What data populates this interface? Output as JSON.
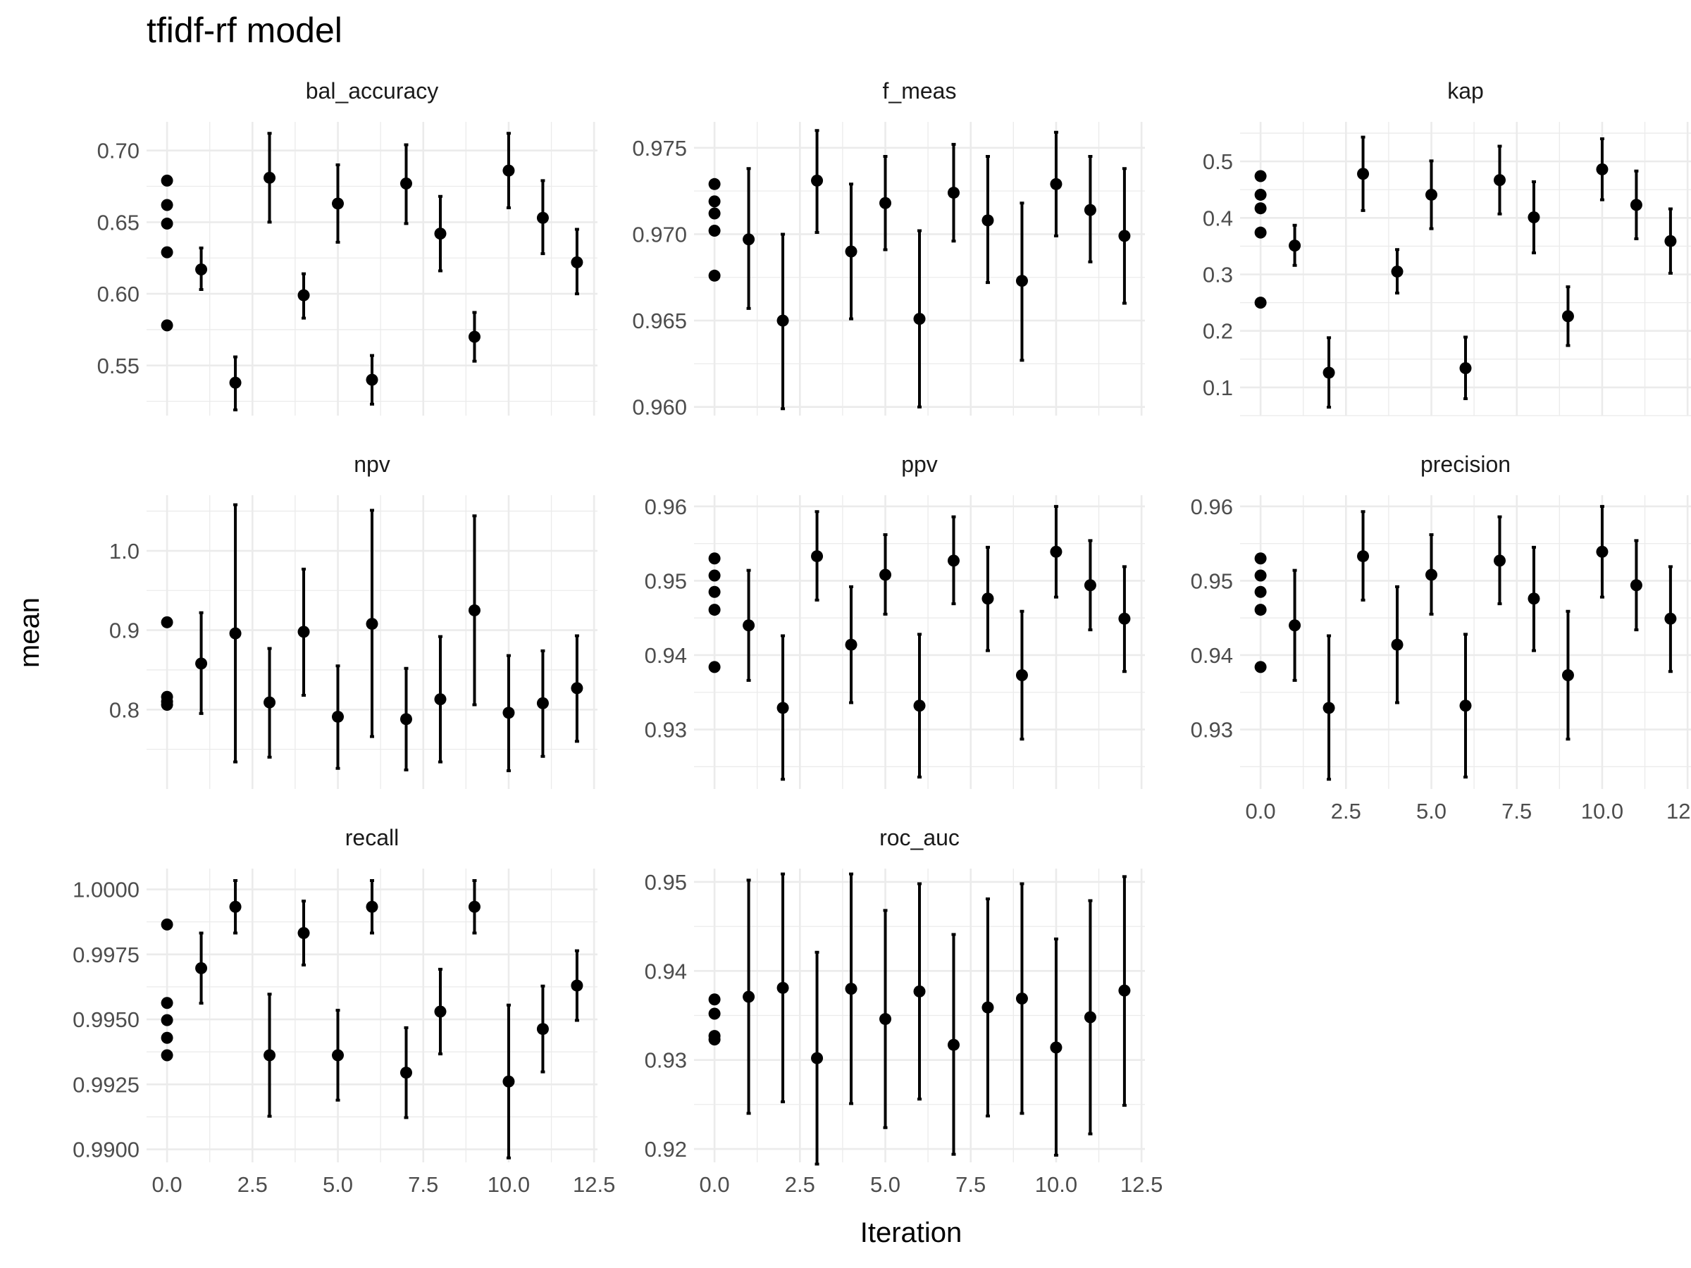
{
  "chart_data": {
    "type": "scatter",
    "title": "tfidf-rf model",
    "xlabel": "Iteration",
    "ylabel": "mean",
    "grid": true,
    "x_axis": {
      "range": [
        -0.6,
        12.6
      ],
      "ticks": [
        0,
        2.5,
        5,
        7.5,
        10,
        12.5
      ],
      "tick_labels": [
        "0.0",
        "2.5",
        "5.0",
        "7.5",
        "10.0",
        "12.5"
      ]
    },
    "panels": [
      {
        "name": "bal_accuracy",
        "ylim": [
          0.515,
          0.72
        ],
        "y_ticks": [
          0.55,
          0.6,
          0.65,
          0.7
        ],
        "y_tick_labels": [
          "0.55",
          "0.60",
          "0.65",
          "0.70"
        ],
        "points": [
          {
            "x": 0,
            "mean": 0.679,
            "lo": null,
            "hi": null
          },
          {
            "x": 0,
            "mean": 0.662,
            "lo": null,
            "hi": null
          },
          {
            "x": 0,
            "mean": 0.649,
            "lo": null,
            "hi": null
          },
          {
            "x": 0,
            "mean": 0.629,
            "lo": null,
            "hi": null
          },
          {
            "x": 0,
            "mean": 0.578,
            "lo": null,
            "hi": null
          },
          {
            "x": 1,
            "mean": 0.617,
            "lo": 0.603,
            "hi": 0.632
          },
          {
            "x": 2,
            "mean": 0.538,
            "lo": 0.519,
            "hi": 0.556
          },
          {
            "x": 3,
            "mean": 0.681,
            "lo": 0.65,
            "hi": 0.712
          },
          {
            "x": 4,
            "mean": 0.599,
            "lo": 0.583,
            "hi": 0.614
          },
          {
            "x": 5,
            "mean": 0.663,
            "lo": 0.636,
            "hi": 0.69
          },
          {
            "x": 6,
            "mean": 0.54,
            "lo": 0.523,
            "hi": 0.557
          },
          {
            "x": 7,
            "mean": 0.677,
            "lo": 0.649,
            "hi": 0.704
          },
          {
            "x": 8,
            "mean": 0.642,
            "lo": 0.616,
            "hi": 0.668
          },
          {
            "x": 9,
            "mean": 0.57,
            "lo": 0.553,
            "hi": 0.587
          },
          {
            "x": 10,
            "mean": 0.686,
            "lo": 0.66,
            "hi": 0.712
          },
          {
            "x": 11,
            "mean": 0.653,
            "lo": 0.628,
            "hi": 0.679
          },
          {
            "x": 12,
            "mean": 0.622,
            "lo": 0.6,
            "hi": 0.645
          }
        ]
      },
      {
        "name": "f_meas",
        "ylim": [
          0.9595,
          0.9765
        ],
        "y_ticks": [
          0.96,
          0.965,
          0.97,
          0.975
        ],
        "y_tick_labels": [
          "0.960",
          "0.965",
          "0.970",
          "0.975"
        ],
        "points": [
          {
            "x": 0,
            "mean": 0.9729,
            "lo": null,
            "hi": null
          },
          {
            "x": 0,
            "mean": 0.9719,
            "lo": null,
            "hi": null
          },
          {
            "x": 0,
            "mean": 0.9712,
            "lo": null,
            "hi": null
          },
          {
            "x": 0,
            "mean": 0.9702,
            "lo": null,
            "hi": null
          },
          {
            "x": 0,
            "mean": 0.9676,
            "lo": null,
            "hi": null
          },
          {
            "x": 1,
            "mean": 0.9697,
            "lo": 0.9657,
            "hi": 0.9738
          },
          {
            "x": 2,
            "mean": 0.965,
            "lo": 0.9599,
            "hi": 0.97
          },
          {
            "x": 3,
            "mean": 0.9731,
            "lo": 0.9701,
            "hi": 0.976
          },
          {
            "x": 4,
            "mean": 0.969,
            "lo": 0.9651,
            "hi": 0.9729
          },
          {
            "x": 5,
            "mean": 0.9718,
            "lo": 0.9691,
            "hi": 0.9745
          },
          {
            "x": 6,
            "mean": 0.9651,
            "lo": 0.96,
            "hi": 0.9702
          },
          {
            "x": 7,
            "mean": 0.9724,
            "lo": 0.9696,
            "hi": 0.9752
          },
          {
            "x": 8,
            "mean": 0.9708,
            "lo": 0.9672,
            "hi": 0.9745
          },
          {
            "x": 9,
            "mean": 0.9673,
            "lo": 0.9627,
            "hi": 0.9718
          },
          {
            "x": 10,
            "mean": 0.9729,
            "lo": 0.9699,
            "hi": 0.9759
          },
          {
            "x": 11,
            "mean": 0.9714,
            "lo": 0.9684,
            "hi": 0.9745
          },
          {
            "x": 12,
            "mean": 0.9699,
            "lo": 0.966,
            "hi": 0.9738
          }
        ]
      },
      {
        "name": "kap",
        "ylim": [
          0.05,
          0.57
        ],
        "y_ticks": [
          0.1,
          0.2,
          0.3,
          0.4,
          0.5
        ],
        "y_tick_labels": [
          "0.1",
          "0.2",
          "0.3",
          "0.4",
          "0.5"
        ],
        "points": [
          {
            "x": 0,
            "mean": 0.474,
            "lo": null,
            "hi": null
          },
          {
            "x": 0,
            "mean": 0.441,
            "lo": null,
            "hi": null
          },
          {
            "x": 0,
            "mean": 0.417,
            "lo": null,
            "hi": null
          },
          {
            "x": 0,
            "mean": 0.374,
            "lo": null,
            "hi": null
          },
          {
            "x": 0,
            "mean": 0.25,
            "lo": null,
            "hi": null
          },
          {
            "x": 1,
            "mean": 0.351,
            "lo": 0.316,
            "hi": 0.387
          },
          {
            "x": 2,
            "mean": 0.126,
            "lo": 0.065,
            "hi": 0.188
          },
          {
            "x": 3,
            "mean": 0.478,
            "lo": 0.413,
            "hi": 0.543
          },
          {
            "x": 4,
            "mean": 0.305,
            "lo": 0.267,
            "hi": 0.344
          },
          {
            "x": 5,
            "mean": 0.441,
            "lo": 0.381,
            "hi": 0.501
          },
          {
            "x": 6,
            "mean": 0.134,
            "lo": 0.08,
            "hi": 0.189
          },
          {
            "x": 7,
            "mean": 0.467,
            "lo": 0.407,
            "hi": 0.527
          },
          {
            "x": 8,
            "mean": 0.401,
            "lo": 0.338,
            "hi": 0.464
          },
          {
            "x": 9,
            "mean": 0.226,
            "lo": 0.174,
            "hi": 0.278
          },
          {
            "x": 10,
            "mean": 0.486,
            "lo": 0.432,
            "hi": 0.54
          },
          {
            "x": 11,
            "mean": 0.423,
            "lo": 0.363,
            "hi": 0.483
          },
          {
            "x": 12,
            "mean": 0.359,
            "lo": 0.302,
            "hi": 0.416
          }
        ]
      },
      {
        "name": "npv",
        "ylim": [
          0.7,
          1.07
        ],
        "y_ticks": [
          0.8,
          0.9,
          1.0
        ],
        "y_tick_labels": [
          "0.8",
          "0.9",
          "1.0"
        ],
        "points": [
          {
            "x": 0,
            "mean": 0.91,
            "lo": null,
            "hi": null
          },
          {
            "x": 0,
            "mean": 0.816,
            "lo": null,
            "hi": null
          },
          {
            "x": 0,
            "mean": 0.81,
            "lo": null,
            "hi": null
          },
          {
            "x": 0,
            "mean": 0.806,
            "lo": null,
            "hi": null
          },
          {
            "x": 1,
            "mean": 0.858,
            "lo": 0.795,
            "hi": 0.922
          },
          {
            "x": 2,
            "mean": 0.896,
            "lo": 0.734,
            "hi": 1.058
          },
          {
            "x": 3,
            "mean": 0.809,
            "lo": 0.74,
            "hi": 0.877
          },
          {
            "x": 4,
            "mean": 0.898,
            "lo": 0.818,
            "hi": 0.977
          },
          {
            "x": 5,
            "mean": 0.791,
            "lo": 0.726,
            "hi": 0.855
          },
          {
            "x": 6,
            "mean": 0.908,
            "lo": 0.766,
            "hi": 1.051
          },
          {
            "x": 7,
            "mean": 0.788,
            "lo": 0.724,
            "hi": 0.852
          },
          {
            "x": 8,
            "mean": 0.813,
            "lo": 0.734,
            "hi": 0.892
          },
          {
            "x": 9,
            "mean": 0.925,
            "lo": 0.806,
            "hi": 1.044
          },
          {
            "x": 10,
            "mean": 0.796,
            "lo": 0.723,
            "hi": 0.868
          },
          {
            "x": 11,
            "mean": 0.808,
            "lo": 0.741,
            "hi": 0.874
          },
          {
            "x": 12,
            "mean": 0.827,
            "lo": 0.76,
            "hi": 0.893
          }
        ]
      },
      {
        "name": "ppv",
        "ylim": [
          0.922,
          0.9615
        ],
        "y_ticks": [
          0.93,
          0.94,
          0.95,
          0.96
        ],
        "y_tick_labels": [
          "0.93",
          "0.94",
          "0.95",
          "0.96"
        ],
        "points": [
          {
            "x": 0,
            "mean": 0.953,
            "lo": null,
            "hi": null
          },
          {
            "x": 0,
            "mean": 0.9507,
            "lo": null,
            "hi": null
          },
          {
            "x": 0,
            "mean": 0.9485,
            "lo": null,
            "hi": null
          },
          {
            "x": 0,
            "mean": 0.9461,
            "lo": null,
            "hi": null
          },
          {
            "x": 0,
            "mean": 0.9384,
            "lo": null,
            "hi": null
          },
          {
            "x": 1,
            "mean": 0.944,
            "lo": 0.9366,
            "hi": 0.9514
          },
          {
            "x": 2,
            "mean": 0.9329,
            "lo": 0.9233,
            "hi": 0.9426
          },
          {
            "x": 3,
            "mean": 0.9533,
            "lo": 0.9474,
            "hi": 0.9593
          },
          {
            "x": 4,
            "mean": 0.9414,
            "lo": 0.9336,
            "hi": 0.9492
          },
          {
            "x": 5,
            "mean": 0.9508,
            "lo": 0.9455,
            "hi": 0.9562
          },
          {
            "x": 6,
            "mean": 0.9332,
            "lo": 0.9236,
            "hi": 0.9428
          },
          {
            "x": 7,
            "mean": 0.9527,
            "lo": 0.9469,
            "hi": 0.9586
          },
          {
            "x": 8,
            "mean": 0.9476,
            "lo": 0.9406,
            "hi": 0.9545
          },
          {
            "x": 9,
            "mean": 0.9373,
            "lo": 0.9287,
            "hi": 0.9459
          },
          {
            "x": 10,
            "mean": 0.9539,
            "lo": 0.9478,
            "hi": 0.96
          },
          {
            "x": 11,
            "mean": 0.9494,
            "lo": 0.9434,
            "hi": 0.9554
          },
          {
            "x": 12,
            "mean": 0.9449,
            "lo": 0.9378,
            "hi": 0.9519
          }
        ]
      },
      {
        "name": "precision",
        "ylim": [
          0.922,
          0.9615
        ],
        "y_ticks": [
          0.93,
          0.94,
          0.95,
          0.96
        ],
        "y_tick_labels": [
          "0.93",
          "0.94",
          "0.95",
          "0.96"
        ],
        "points": [
          {
            "x": 0,
            "mean": 0.953,
            "lo": null,
            "hi": null
          },
          {
            "x": 0,
            "mean": 0.9507,
            "lo": null,
            "hi": null
          },
          {
            "x": 0,
            "mean": 0.9485,
            "lo": null,
            "hi": null
          },
          {
            "x": 0,
            "mean": 0.9461,
            "lo": null,
            "hi": null
          },
          {
            "x": 0,
            "mean": 0.9384,
            "lo": null,
            "hi": null
          },
          {
            "x": 1,
            "mean": 0.944,
            "lo": 0.9366,
            "hi": 0.9514
          },
          {
            "x": 2,
            "mean": 0.9329,
            "lo": 0.9233,
            "hi": 0.9426
          },
          {
            "x": 3,
            "mean": 0.9533,
            "lo": 0.9474,
            "hi": 0.9593
          },
          {
            "x": 4,
            "mean": 0.9414,
            "lo": 0.9336,
            "hi": 0.9492
          },
          {
            "x": 5,
            "mean": 0.9508,
            "lo": 0.9455,
            "hi": 0.9562
          },
          {
            "x": 6,
            "mean": 0.9332,
            "lo": 0.9236,
            "hi": 0.9428
          },
          {
            "x": 7,
            "mean": 0.9527,
            "lo": 0.9469,
            "hi": 0.9586
          },
          {
            "x": 8,
            "mean": 0.9476,
            "lo": 0.9406,
            "hi": 0.9545
          },
          {
            "x": 9,
            "mean": 0.9373,
            "lo": 0.9287,
            "hi": 0.9459
          },
          {
            "x": 10,
            "mean": 0.9539,
            "lo": 0.9478,
            "hi": 0.96
          },
          {
            "x": 11,
            "mean": 0.9494,
            "lo": 0.9434,
            "hi": 0.9554
          },
          {
            "x": 12,
            "mean": 0.9449,
            "lo": 0.9378,
            "hi": 0.9519
          }
        ]
      },
      {
        "name": "recall",
        "ylim": [
          0.9895,
          1.0008
        ],
        "y_ticks": [
          0.99,
          0.9925,
          0.995,
          0.9975,
          1.0
        ],
        "y_tick_labels": [
          "0.9900",
          "0.9925",
          "0.9950",
          "0.9975",
          "1.0000"
        ],
        "points": [
          {
            "x": 0,
            "mean": 0.99865,
            "lo": null,
            "hi": null
          },
          {
            "x": 0,
            "mean": 0.99563,
            "lo": null,
            "hi": null
          },
          {
            "x": 0,
            "mean": 0.99497,
            "lo": null,
            "hi": null
          },
          {
            "x": 0,
            "mean": 0.99429,
            "lo": null,
            "hi": null
          },
          {
            "x": 0,
            "mean": 0.99362,
            "lo": null,
            "hi": null
          },
          {
            "x": 1,
            "mean": 0.99697,
            "lo": 0.99562,
            "hi": 0.99832
          },
          {
            "x": 2,
            "mean": 0.99933,
            "lo": 0.99832,
            "hi": 1.00034
          },
          {
            "x": 3,
            "mean": 0.99362,
            "lo": 0.99127,
            "hi": 0.99597
          },
          {
            "x": 4,
            "mean": 0.99832,
            "lo": 0.99709,
            "hi": 0.99955
          },
          {
            "x": 5,
            "mean": 0.99362,
            "lo": 0.99189,
            "hi": 0.99535
          },
          {
            "x": 6,
            "mean": 0.99933,
            "lo": 0.99832,
            "hi": 1.00034
          },
          {
            "x": 7,
            "mean": 0.99295,
            "lo": 0.99122,
            "hi": 0.99468
          },
          {
            "x": 8,
            "mean": 0.9953,
            "lo": 0.99367,
            "hi": 0.99693
          },
          {
            "x": 9,
            "mean": 0.99933,
            "lo": 0.99832,
            "hi": 1.00034
          },
          {
            "x": 10,
            "mean": 0.99261,
            "lo": 0.98967,
            "hi": 0.99555
          },
          {
            "x": 11,
            "mean": 0.99463,
            "lo": 0.99298,
            "hi": 0.99628
          },
          {
            "x": 12,
            "mean": 0.9963,
            "lo": 0.99496,
            "hi": 0.99764
          }
        ]
      },
      {
        "name": "roc_auc",
        "ylim": [
          0.9185,
          0.9515
        ],
        "y_ticks": [
          0.92,
          0.93,
          0.94,
          0.95
        ],
        "y_tick_labels": [
          "0.92",
          "0.93",
          "0.94",
          "0.95"
        ],
        "points": [
          {
            "x": 0,
            "mean": 0.9368,
            "lo": null,
            "hi": null
          },
          {
            "x": 0,
            "mean": 0.9352,
            "lo": null,
            "hi": null
          },
          {
            "x": 0,
            "mean": 0.9327,
            "lo": null,
            "hi": null
          },
          {
            "x": 0,
            "mean": 0.9323,
            "lo": null,
            "hi": null
          },
          {
            "x": 1,
            "mean": 0.9371,
            "lo": 0.924,
            "hi": 0.9502
          },
          {
            "x": 2,
            "mean": 0.9381,
            "lo": 0.9253,
            "hi": 0.9509
          },
          {
            "x": 3,
            "mean": 0.9302,
            "lo": 0.9183,
            "hi": 0.9421
          },
          {
            "x": 4,
            "mean": 0.938,
            "lo": 0.9251,
            "hi": 0.9509
          },
          {
            "x": 5,
            "mean": 0.9346,
            "lo": 0.9224,
            "hi": 0.9468
          },
          {
            "x": 6,
            "mean": 0.9377,
            "lo": 0.9256,
            "hi": 0.9498
          },
          {
            "x": 7,
            "mean": 0.9317,
            "lo": 0.9194,
            "hi": 0.9441
          },
          {
            "x": 8,
            "mean": 0.9359,
            "lo": 0.9237,
            "hi": 0.9481
          },
          {
            "x": 9,
            "mean": 0.9369,
            "lo": 0.924,
            "hi": 0.9498
          },
          {
            "x": 10,
            "mean": 0.9314,
            "lo": 0.9193,
            "hi": 0.9436
          },
          {
            "x": 11,
            "mean": 0.9348,
            "lo": 0.9217,
            "hi": 0.9479
          },
          {
            "x": 12,
            "mean": 0.9378,
            "lo": 0.9249,
            "hi": 0.9506
          }
        ]
      }
    ]
  }
}
